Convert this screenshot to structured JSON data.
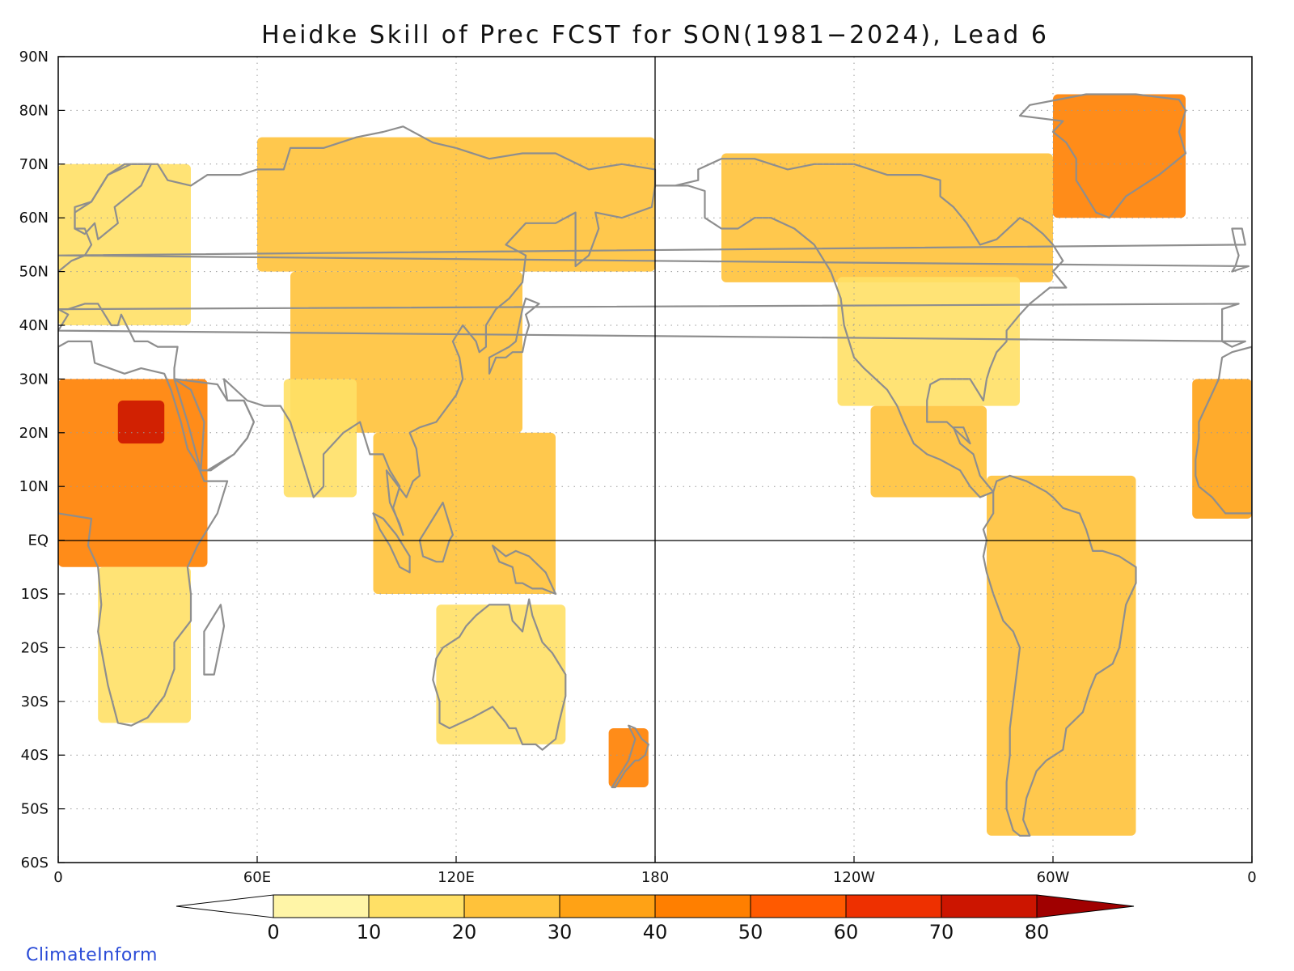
{
  "title": "Heidke Skill of Prec FCST for SON(1981−2024), Lead 6",
  "credit": "ClimateInform",
  "map": {
    "projection": "equirectangular, Pacific-centered",
    "lon_range": [
      0,
      360
    ],
    "lat_range": [
      -60,
      90
    ],
    "grid": "dotted",
    "lat_ticks": [
      {
        "lat": 90,
        "label": "90N"
      },
      {
        "lat": 80,
        "label": "80N"
      },
      {
        "lat": 70,
        "label": "70N"
      },
      {
        "lat": 60,
        "label": "60N"
      },
      {
        "lat": 50,
        "label": "50N"
      },
      {
        "lat": 40,
        "label": "40N"
      },
      {
        "lat": 30,
        "label": "30N"
      },
      {
        "lat": 20,
        "label": "20N"
      },
      {
        "lat": 10,
        "label": "10N"
      },
      {
        "lat": 0,
        "label": "EQ"
      },
      {
        "lat": -10,
        "label": "10S"
      },
      {
        "lat": -20,
        "label": "20S"
      },
      {
        "lat": -30,
        "label": "30S"
      },
      {
        "lat": -40,
        "label": "40S"
      },
      {
        "lat": -50,
        "label": "50S"
      },
      {
        "lat": -60,
        "label": "60S"
      }
    ],
    "lon_ticks": [
      {
        "lon": 0,
        "label": "0"
      },
      {
        "lon": 60,
        "label": "60E"
      },
      {
        "lon": 120,
        "label": "120E"
      },
      {
        "lon": 180,
        "label": "180"
      },
      {
        "lon": 240,
        "label": "120W"
      },
      {
        "lon": 300,
        "label": "60W"
      },
      {
        "lon": 360,
        "label": "0"
      }
    ],
    "land_color": "#ffffff",
    "coastline_color": "#8e8e8e",
    "skill_regions": [
      {
        "region": "Sahel / Central Africa",
        "lon": [
          0,
          45
        ],
        "lat": [
          -5,
          30
        ],
        "level": 40
      },
      {
        "region": "Lake Chad area",
        "lon": [
          18,
          32
        ],
        "lat": [
          18,
          26
        ],
        "level": 70
      },
      {
        "region": "Southern Africa",
        "lon": [
          12,
          40
        ],
        "lat": [
          -34,
          -5
        ],
        "level": 15
      },
      {
        "region": "Europe",
        "lon": [
          0,
          40
        ],
        "lat": [
          40,
          70
        ],
        "level": 12
      },
      {
        "region": "Siberia",
        "lon": [
          60,
          180
        ],
        "lat": [
          50,
          75
        ],
        "level": 20
      },
      {
        "region": "Central / East Asia",
        "lon": [
          70,
          140
        ],
        "lat": [
          20,
          50
        ],
        "level": 22
      },
      {
        "region": "India",
        "lon": [
          68,
          90
        ],
        "lat": [
          8,
          30
        ],
        "level": 15
      },
      {
        "region": "SE Asia / Indonesia",
        "lon": [
          95,
          150
        ],
        "lat": [
          -10,
          20
        ],
        "level": 25
      },
      {
        "region": "Australia",
        "lon": [
          114,
          153
        ],
        "lat": [
          -38,
          -12
        ],
        "level": 12
      },
      {
        "region": "New Zealand",
        "lon": [
          166,
          178
        ],
        "lat": [
          -46,
          -35
        ],
        "level": 45
      },
      {
        "region": "Alaska / Canada",
        "lon": [
          200,
          300
        ],
        "lat": [
          48,
          72
        ],
        "level": 20
      },
      {
        "region": "Greenland",
        "lon": [
          300,
          340
        ],
        "lat": [
          60,
          83
        ],
        "level": 40
      },
      {
        "region": "United States",
        "lon": [
          235,
          290
        ],
        "lat": [
          25,
          49
        ],
        "level": 15
      },
      {
        "region": "Central America",
        "lon": [
          245,
          280
        ],
        "lat": [
          8,
          25
        ],
        "level": 25
      },
      {
        "region": "South America",
        "lon": [
          280,
          325
        ],
        "lat": [
          -55,
          12
        ],
        "level": 20
      },
      {
        "region": "West Africa",
        "lon": [
          342,
          360
        ],
        "lat": [
          4,
          30
        ],
        "level": 35
      }
    ]
  },
  "colorbar": {
    "ticks": [
      "0",
      "10",
      "20",
      "30",
      "40",
      "50",
      "60",
      "70",
      "80"
    ],
    "colors": [
      "#fff5a7",
      "#ffe066",
      "#ffc23a",
      "#ffa215",
      "#ff7f00",
      "#ff5a00",
      "#ee3000",
      "#cc1500",
      "#a00000"
    ],
    "below_color": "#ffffff",
    "above_color": "#a00000"
  }
}
